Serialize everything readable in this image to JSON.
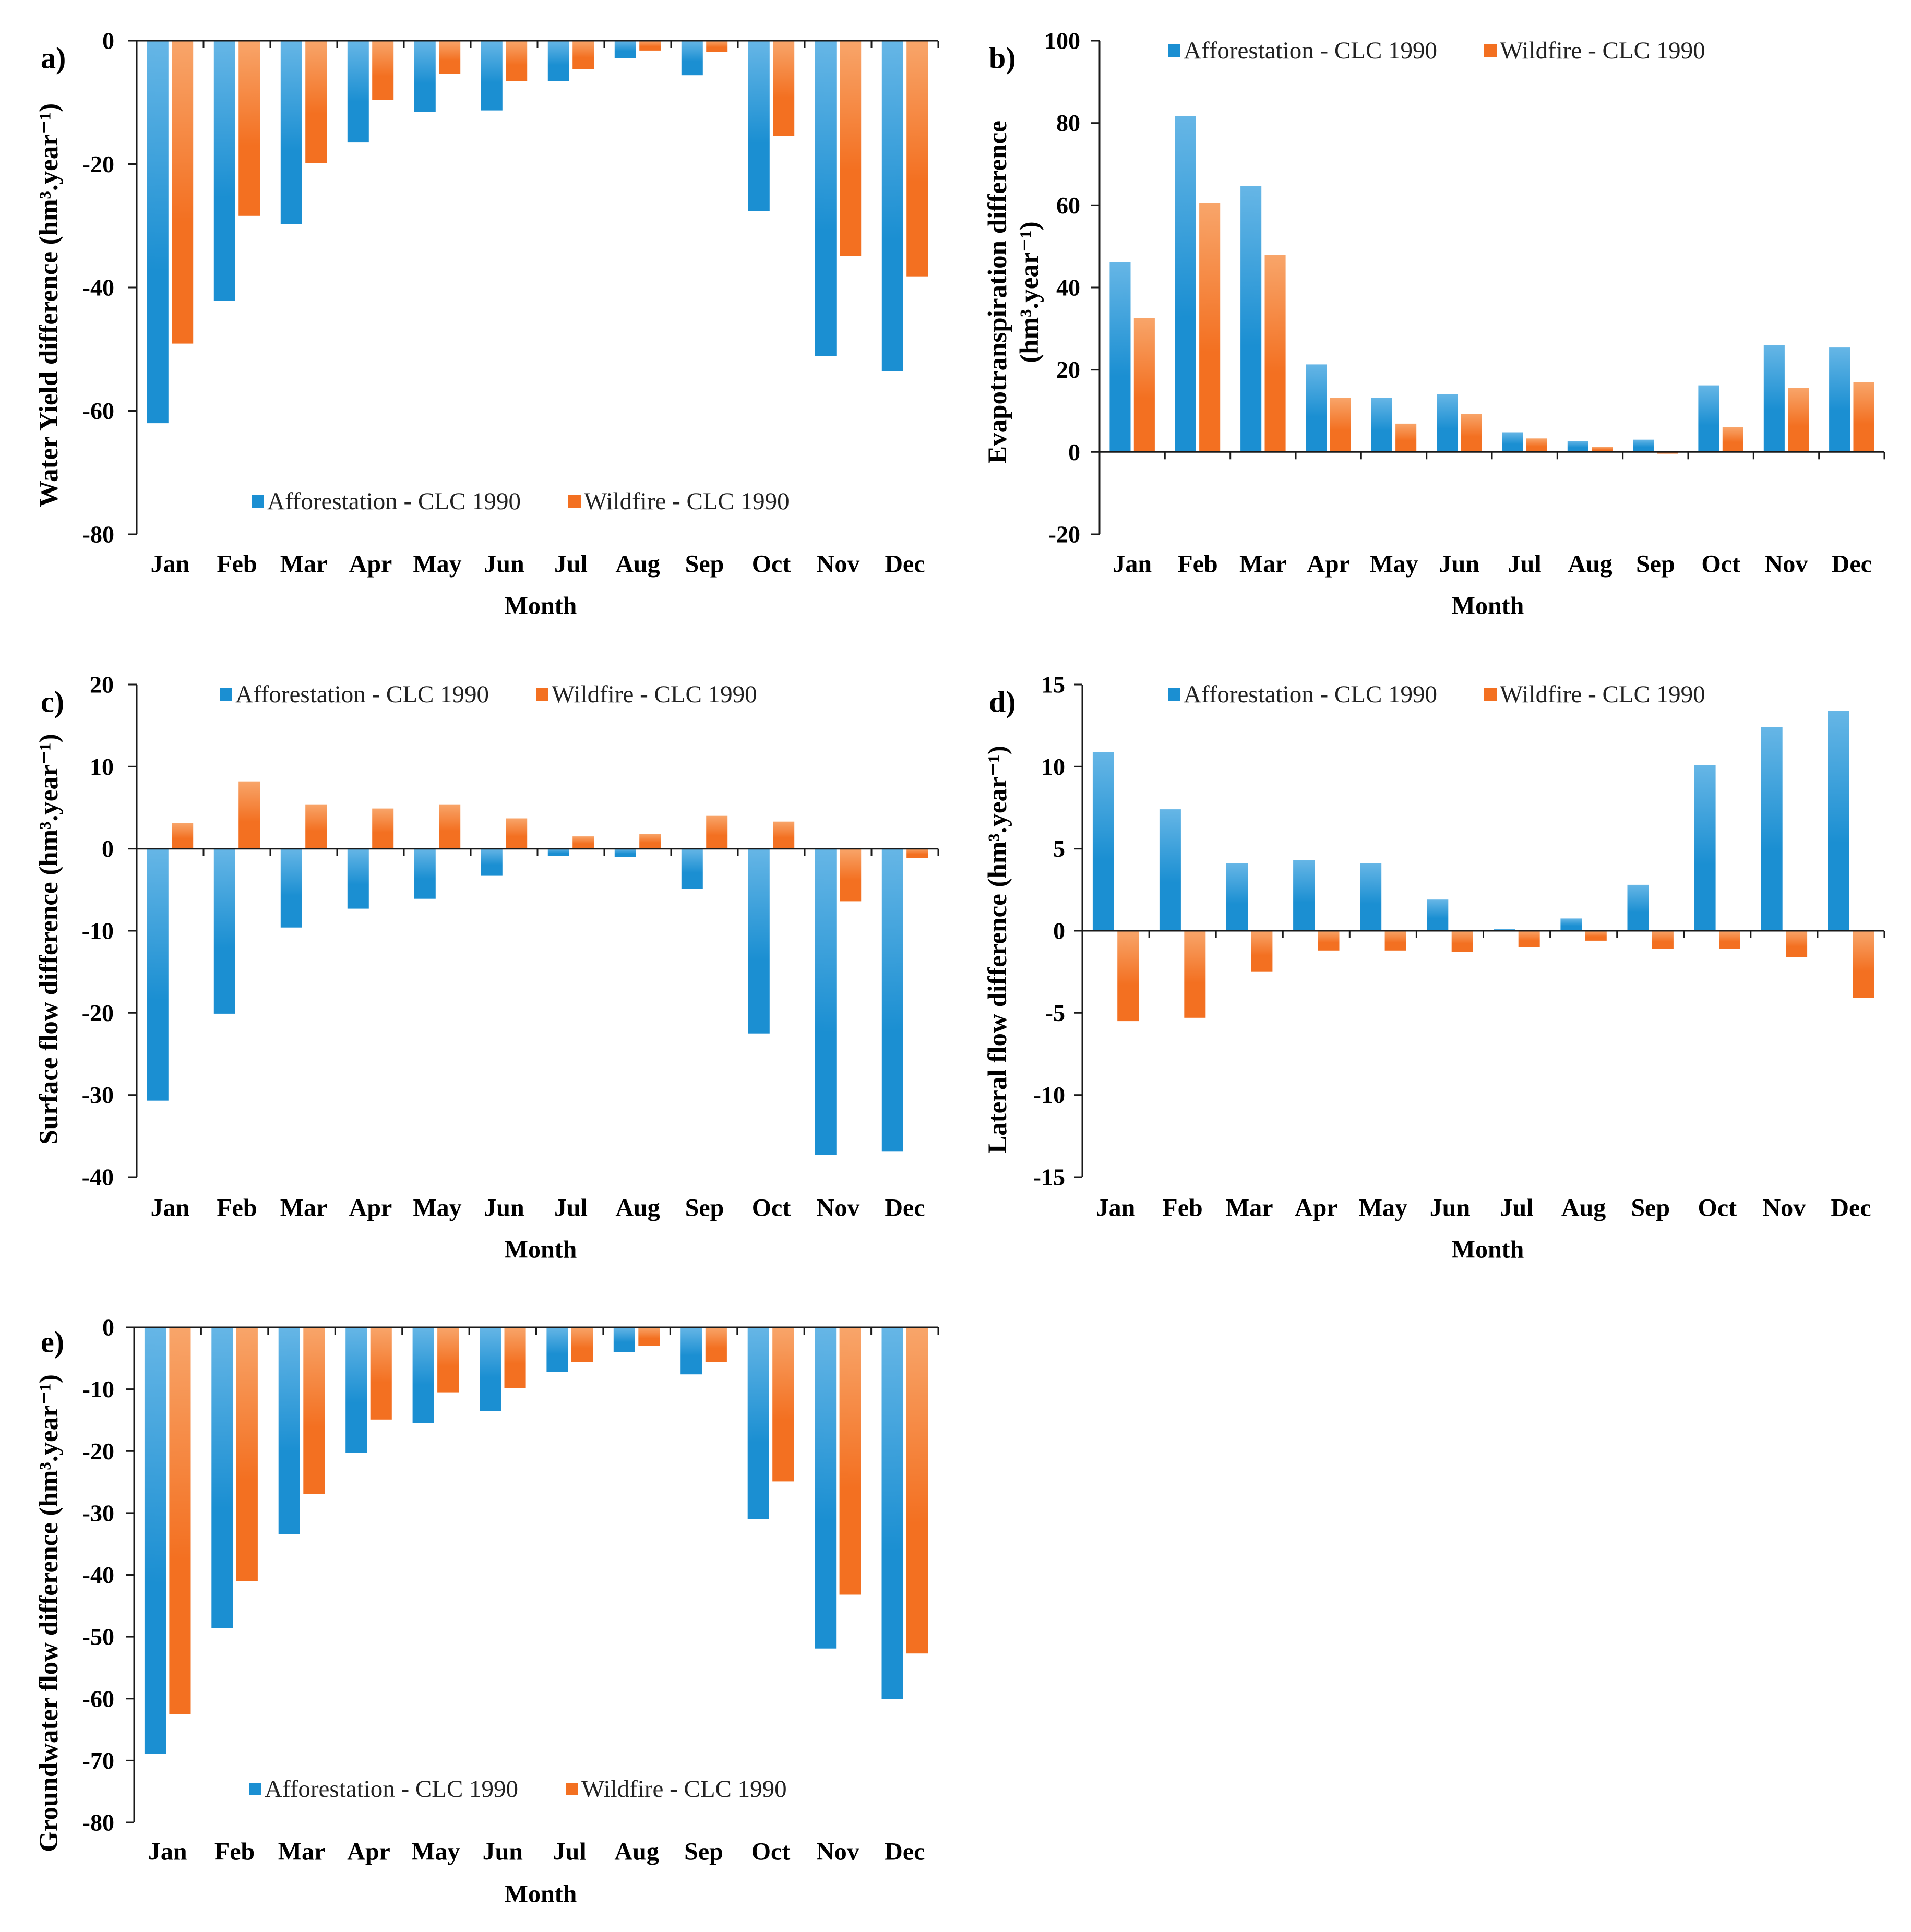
{
  "chart_data": [
    {
      "type": "bar",
      "panel_label": "a)",
      "categories": [
        "Jan",
        "Feb",
        "Mar",
        "Apr",
        "May",
        "Jun",
        "Jul",
        "Aug",
        "Sep",
        "Oct",
        "Nov",
        "Dec"
      ],
      "series": [
        {
          "name": "Afforestation - CLC 1990",
          "color": "#1b8fd2",
          "color_light": "#66b6e6",
          "values": [
            -62.0,
            -42.2,
            -29.7,
            -16.5,
            -11.5,
            -11.3,
            -6.6,
            -2.8,
            -5.6,
            -27.6,
            -51.1,
            -53.6
          ]
        },
        {
          "name": "Wildfire - CLC 1990",
          "color": "#f37021",
          "color_light": "#f8a56a",
          "values": [
            -49.1,
            -28.4,
            -19.8,
            -9.6,
            -5.4,
            -6.6,
            -4.6,
            -1.6,
            -1.8,
            -15.4,
            -34.9,
            -38.2
          ]
        }
      ],
      "xlabel": "Month",
      "ylabel": [
        "Water Yield difference (hm³.year⁻¹)"
      ],
      "ylim": [
        -80,
        0
      ],
      "yticks": [
        0,
        -20,
        -40,
        -60,
        -80
      ],
      "grid": false,
      "legend_position": "bottom-center"
    },
    {
      "type": "bar",
      "panel_label": "b)",
      "categories": [
        "Jan",
        "Feb",
        "Mar",
        "Apr",
        "May",
        "Jun",
        "Jul",
        "Aug",
        "Sep",
        "Oct",
        "Nov",
        "Dec"
      ],
      "series": [
        {
          "name": "Afforestation - CLC 1990",
          "color": "#1b8fd2",
          "color_light": "#66b6e6",
          "values": [
            46.1,
            81.7,
            64.7,
            21.3,
            13.2,
            14.1,
            4.8,
            2.7,
            3.0,
            16.2,
            26.0,
            25.4
          ]
        },
        {
          "name": "Wildfire - CLC 1990",
          "color": "#f37021",
          "color_light": "#f8a56a",
          "values": [
            32.6,
            60.5,
            47.9,
            13.2,
            6.9,
            9.3,
            3.3,
            1.2,
            -0.4,
            6.0,
            15.6,
            17.0
          ]
        }
      ],
      "xlabel": "Month",
      "ylabel": [
        "Evapotranspiration difference",
        "(hm³.year⁻¹)"
      ],
      "ylim": [
        -20,
        100
      ],
      "yticks": [
        100,
        80,
        60,
        40,
        20,
        0,
        -20
      ],
      "grid": false,
      "legend_position": "top-center"
    },
    {
      "type": "bar",
      "panel_label": "c)",
      "categories": [
        "Jan",
        "Feb",
        "Mar",
        "Apr",
        "May",
        "Jun",
        "Jul",
        "Aug",
        "Sep",
        "Oct",
        "Nov",
        "Dec"
      ],
      "series": [
        {
          "name": "Afforestation - CLC 1990",
          "color": "#1b8fd2",
          "color_light": "#66b6e6",
          "values": [
            -30.7,
            -20.1,
            -9.6,
            -7.3,
            -6.1,
            -3.3,
            -0.9,
            -1.0,
            -4.9,
            -22.5,
            -37.3,
            -36.9
          ]
        },
        {
          "name": "Wildfire - CLC 1990",
          "color": "#f37021",
          "color_light": "#f8a56a",
          "values": [
            3.1,
            8.2,
            5.4,
            4.9,
            5.4,
            3.7,
            1.5,
            1.8,
            4.0,
            3.3,
            -6.4,
            -1.1
          ]
        }
      ],
      "xlabel": "Month",
      "ylabel": [
        "Surface flow difference (hm³.year⁻¹)"
      ],
      "ylim": [
        -40,
        20
      ],
      "yticks": [
        20,
        10,
        0,
        -10,
        -20,
        -30,
        -40
      ],
      "grid": false,
      "legend_position": "top-center"
    },
    {
      "type": "bar",
      "panel_label": "d)",
      "categories": [
        "Jan",
        "Feb",
        "Mar",
        "Apr",
        "May",
        "Jun",
        "Jul",
        "Aug",
        "Sep",
        "Oct",
        "Nov",
        "Dec"
      ],
      "series": [
        {
          "name": "Afforestation - CLC 1990",
          "color": "#1b8fd2",
          "color_light": "#66b6e6",
          "values": [
            10.9,
            7.4,
            4.1,
            4.3,
            4.1,
            1.9,
            0.1,
            0.75,
            2.8,
            10.1,
            12.4,
            13.4
          ]
        },
        {
          "name": "Wildfire - CLC 1990",
          "color": "#f37021",
          "color_light": "#f8a56a",
          "values": [
            -5.5,
            -5.3,
            -2.5,
            -1.2,
            -1.2,
            -1.3,
            -1.0,
            -0.6,
            -1.1,
            -1.1,
            -1.6,
            -4.1
          ]
        }
      ],
      "xlabel": "Month",
      "ylabel": [
        "Lateral flow difference (hm³.year⁻¹)"
      ],
      "ylim": [
        -15,
        15
      ],
      "yticks": [
        15,
        10,
        5,
        0,
        -5,
        -10,
        -15
      ],
      "grid": false,
      "legend_position": "top-center"
    },
    {
      "type": "bar",
      "panel_label": "e)",
      "categories": [
        "Jan",
        "Feb",
        "Mar",
        "Apr",
        "May",
        "Jun",
        "Jul",
        "Aug",
        "Sep",
        "Oct",
        "Nov",
        "Dec"
      ],
      "series": [
        {
          "name": "Afforestation - CLC 1990",
          "color": "#1b8fd2",
          "color_light": "#66b6e6",
          "values": [
            -68.9,
            -48.6,
            -33.4,
            -20.3,
            -15.5,
            -13.5,
            -7.2,
            -4.0,
            -7.6,
            -31.0,
            -51.9,
            -60.1
          ]
        },
        {
          "name": "Wildfire - CLC 1990",
          "color": "#f37021",
          "color_light": "#f8a56a",
          "values": [
            -62.5,
            -41.0,
            -26.9,
            -14.9,
            -10.5,
            -9.8,
            -5.6,
            -3.0,
            -5.6,
            -24.9,
            -43.2,
            -52.7
          ]
        }
      ],
      "xlabel": "Month",
      "ylabel": [
        "Groundwater flow difference (hm³.year⁻¹)"
      ],
      "ylim": [
        -80,
        0
      ],
      "yticks": [
        0,
        -10,
        -20,
        -30,
        -40,
        -50,
        -60,
        -70,
        -80
      ],
      "grid": false,
      "legend_position": "bottom-center"
    }
  ]
}
